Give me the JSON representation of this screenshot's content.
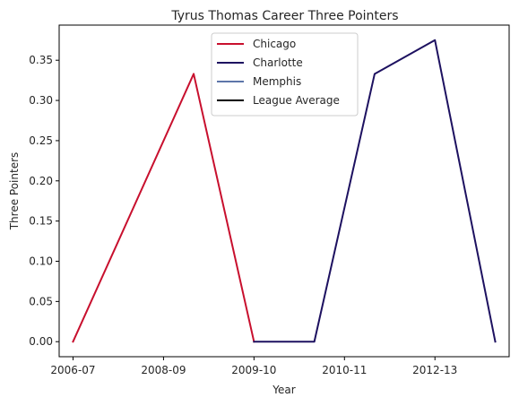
{
  "chart_data": {
    "type": "line",
    "title": "Tyrus Thomas Career Three Pointers",
    "xlabel": "Year",
    "ylabel": "Three Pointers",
    "x_tick_labels": [
      "2006-07",
      "2008-09",
      "2009-10",
      "2010-11",
      "2012-13"
    ],
    "y_ticks": [
      0.0,
      0.05,
      0.1,
      0.15,
      0.2,
      0.25,
      0.3,
      0.35
    ],
    "y_tick_labels": [
      "0.00",
      "0.05",
      "0.10",
      "0.15",
      "0.20",
      "0.25",
      "0.30",
      "0.35"
    ],
    "ylim": [
      -0.0187,
      0.3937
    ],
    "xlim": [
      -0.23,
      7.23
    ],
    "x_ticks": [
      0,
      1.5,
      3,
      4.5,
      6
    ],
    "grid": false,
    "legend_position": "top-center",
    "series": [
      {
        "name": "Chicago",
        "color": "#C8102E",
        "points": [
          [
            0,
            0.0
          ],
          [
            2,
            0.333
          ],
          [
            3,
            0.0
          ]
        ]
      },
      {
        "name": "Charlotte",
        "color": "#1D1160",
        "points": [
          [
            3,
            0.0
          ],
          [
            4,
            0.0
          ],
          [
            5,
            0.333
          ],
          [
            6,
            0.375
          ],
          [
            7,
            0.0
          ]
        ]
      },
      {
        "name": "Memphis",
        "color": "#5D76A9",
        "points": []
      },
      {
        "name": "League Average",
        "color": "#000000",
        "points": []
      }
    ]
  }
}
